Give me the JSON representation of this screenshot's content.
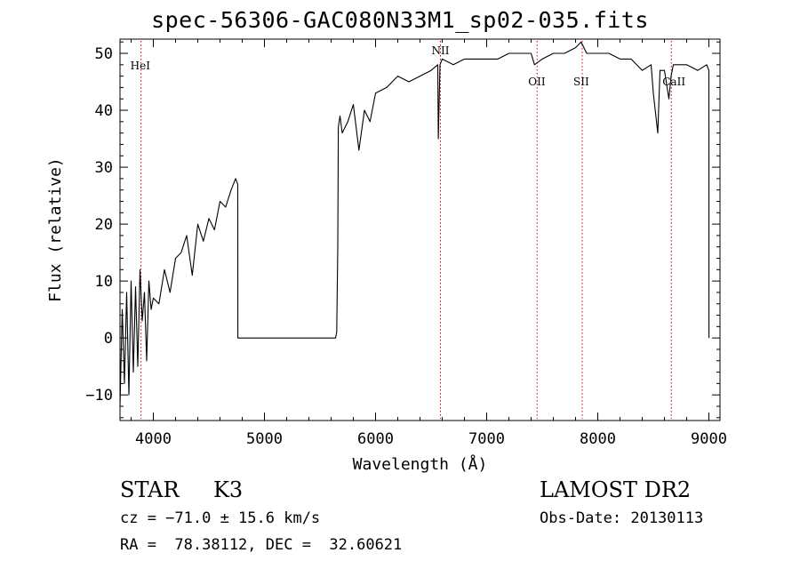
{
  "chart_data": {
    "type": "line",
    "title": "spec-56306-GAC080N33M1_sp02-035.fits",
    "xlabel": "Wavelength (Å)",
    "ylabel": "Flux (relative)",
    "xlim": [
      3700,
      9100
    ],
    "ylim": [
      -14.5,
      52.5
    ],
    "xticks": [
      4000,
      5000,
      6000,
      7000,
      8000,
      9000
    ],
    "yticks": [
      -10,
      0,
      10,
      20,
      30,
      40,
      50
    ],
    "grid": false,
    "line_color": "#000000",
    "marker_color": "#cc0000",
    "series": [
      {
        "x": [
          3700,
          3720,
          3740,
          3760,
          3780,
          3800,
          3820,
          3840,
          3860,
          3880,
          3900,
          3920,
          3940,
          3960,
          3980,
          4000,
          4050,
          4100,
          4150,
          4200,
          4250,
          4300,
          4350,
          4400,
          4450,
          4500,
          4550,
          4600,
          4650,
          4700,
          4740,
          4760,
          4761,
          4900,
          5100,
          5300,
          5500,
          5620,
          5640,
          5650,
          5660,
          5665,
          5680,
          5700,
          5750,
          5800,
          5850,
          5900,
          5950,
          6000,
          6100,
          6200,
          6300,
          6400,
          6500,
          6560,
          6565,
          6580,
          6600,
          6700,
          6800,
          6900,
          7000,
          7100,
          7200,
          7300,
          7400,
          7430,
          7500,
          7600,
          7700,
          7800,
          7850,
          7900,
          8000,
          8100,
          8200,
          8300,
          8400,
          8480,
          8500,
          8540,
          8560,
          8600,
          8640,
          8660,
          8680,
          8700,
          8800,
          8900,
          8980,
          9000,
          9001
        ],
        "y": [
          -12,
          5,
          -8,
          8,
          -10,
          10,
          -6,
          9,
          -5,
          12,
          3,
          8,
          -4,
          10,
          5,
          7,
          6,
          12,
          8,
          14,
          15,
          18,
          11,
          20,
          17,
          21,
          19,
          24,
          23,
          26,
          28,
          27,
          0,
          0,
          0,
          0,
          0,
          0,
          0,
          1,
          16,
          37,
          39,
          36,
          38,
          41,
          33,
          40,
          38,
          43,
          44,
          46,
          45,
          46,
          47,
          48,
          35,
          48,
          49,
          48,
          49,
          49,
          49,
          49,
          50,
          50,
          50,
          48,
          49,
          50,
          50,
          51,
          52,
          50,
          50,
          50,
          49,
          49,
          47,
          48,
          43,
          36,
          47,
          47,
          42,
          46,
          48,
          48,
          48,
          47,
          48,
          47,
          0
        ]
      }
    ],
    "line_markers": [
      {
        "label": "HeI",
        "x": 3889
      },
      {
        "label": "NII",
        "x": 6584
      },
      {
        "label": "OII",
        "x": 7454
      },
      {
        "label": "SII",
        "x": 7860
      },
      {
        "label": "CaII",
        "x": 8662
      }
    ]
  },
  "info": {
    "class": "STAR",
    "subclass": "K3",
    "survey": "LAMOST DR2",
    "cz": "cz = −71.0 ± 15.6 km/s",
    "obs_date": "Obs-Date: 20130113",
    "radec": "RA =  78.38112, DEC =  32.60621"
  }
}
